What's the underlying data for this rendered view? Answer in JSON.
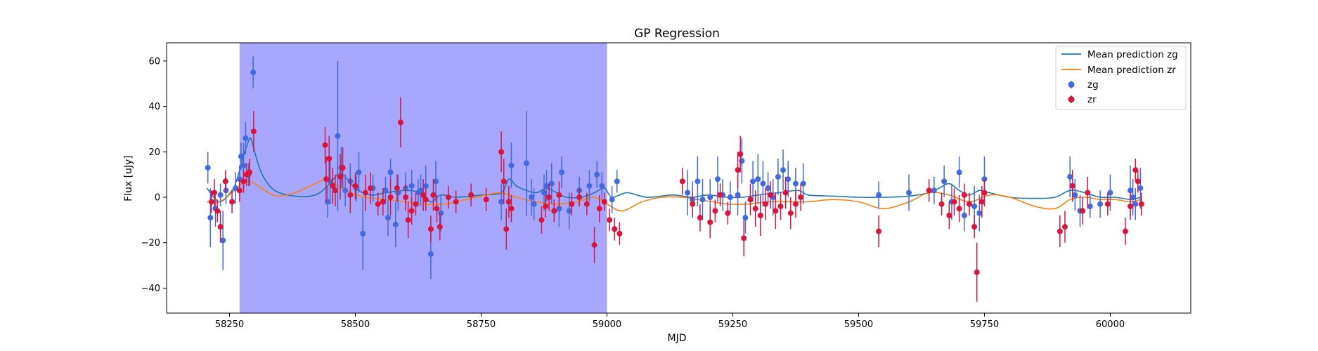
{
  "chart_data": {
    "type": "scatter",
    "title": "GP Regression",
    "xlabel": "MJD",
    "ylabel": "Flux [uJy]",
    "xlim": [
      58125,
      60160
    ],
    "ylim": [
      -51,
      68
    ],
    "xticks": [
      58250,
      58500,
      58750,
      59000,
      59250,
      59500,
      59750,
      60000
    ],
    "yticks": [
      -40,
      -20,
      0,
      20,
      40,
      60
    ],
    "grid": false,
    "legend_position": "top-right",
    "shaded_region": {
      "x0": 58270,
      "x1": 59000,
      "color": "#a7a7ff"
    },
    "colors": {
      "zg_line": "#1f77b4",
      "zr_line": "#ff7f0e",
      "zg_points": "#4169e1",
      "zr_points": "#dc143c"
    },
    "lines": [
      {
        "name": "Mean prediction zg",
        "color": "#1f77b4",
        "x": [
          58205,
          58230,
          58255,
          58265,
          58275,
          58285,
          58292,
          58300,
          58315,
          58340,
          58380,
          58420,
          58445,
          58465,
          58480,
          58500,
          58530,
          58560,
          58600,
          58630,
          58650,
          58670,
          58700,
          58750,
          58790,
          58805,
          58820,
          58840,
          58860,
          58880,
          58900,
          58920,
          58950,
          58975,
          58995,
          59010,
          59040,
          59080,
          59130,
          59170,
          59200,
          59240,
          59270,
          59300,
          59340,
          59380,
          59400,
          59450,
          59500,
          59550,
          59600,
          59640,
          59660,
          59680,
          59700,
          59720,
          59740,
          59760,
          59800,
          59850,
          59890,
          59920,
          59950,
          59980,
          60010,
          60040,
          60060
        ],
        "y": [
          4,
          -2,
          3,
          8,
          16,
          23,
          26,
          20,
          10,
          3,
          0.5,
          1,
          5,
          10,
          9,
          4,
          1,
          2,
          3,
          2,
          -2,
          1,
          0,
          1,
          2,
          8,
          5,
          3,
          2,
          4,
          2,
          0,
          0,
          2,
          4,
          0,
          2,
          0,
          1,
          0,
          1,
          0,
          0,
          1,
          2,
          3,
          1,
          0.5,
          0,
          0,
          0.5,
          2,
          4,
          6,
          3,
          1,
          3,
          2,
          0,
          -0.5,
          0,
          3,
          2,
          0,
          0,
          -1,
          0
        ]
      },
      {
        "name": "Mean prediction zr",
        "color": "#ff7f0e",
        "x": [
          58205,
          58230,
          58260,
          58280,
          58300,
          58320,
          58345,
          58380,
          58420,
          58445,
          58465,
          58490,
          58520,
          58560,
          58600,
          58640,
          58680,
          58720,
          58760,
          58790,
          58820,
          58860,
          58900,
          58940,
          58975,
          59000,
          59030,
          59070,
          59110,
          59150,
          59180,
          59210,
          59240,
          59280,
          59320,
          59360,
          59400,
          59450,
          59500,
          59550,
          59600,
          59640,
          59680,
          59720,
          59760,
          59800,
          59850,
          59890,
          59920,
          59950,
          59980,
          60010,
          60040,
          60060
        ],
        "y": [
          -2,
          -2,
          3,
          7,
          6,
          3,
          0.5,
          2,
          6,
          8,
          5,
          2,
          0,
          -1,
          -2,
          -3,
          -3,
          -1,
          1,
          2,
          0,
          -2,
          -3,
          -2,
          0,
          -3,
          -6,
          -2,
          0,
          0,
          -1,
          -2,
          -3,
          -3,
          -2,
          -2,
          -2,
          -1,
          -2,
          -5,
          -2,
          2,
          1,
          -2,
          1,
          0,
          -4,
          -5,
          -1,
          0,
          -1,
          -1,
          -2,
          -1
        ]
      }
    ],
    "series": [
      {
        "name": "zg",
        "color": "#4169e1",
        "points": [
          [
            58207,
            13,
            7
          ],
          [
            58212,
            -9,
            13
          ],
          [
            58222,
            -5,
            8
          ],
          [
            58232,
            1,
            5
          ],
          [
            58237,
            -19,
            13
          ],
          [
            58243,
            3,
            6
          ],
          [
            58262,
            4,
            7
          ],
          [
            58270,
            8,
            6
          ],
          [
            58273,
            18,
            6
          ],
          [
            58278,
            14,
            10
          ],
          [
            58282,
            26,
            7
          ],
          [
            58288,
            10,
            5
          ],
          [
            58297,
            55,
            7
          ],
          [
            58445,
            -2,
            7
          ],
          [
            58450,
            7,
            10
          ],
          [
            58465,
            27,
            33
          ],
          [
            58472,
            13,
            9
          ],
          [
            58480,
            3,
            7
          ],
          [
            58490,
            7,
            8
          ],
          [
            58502,
            4,
            6
          ],
          [
            58507,
            11,
            9
          ],
          [
            58515,
            -16,
            16
          ],
          [
            58535,
            4,
            6
          ],
          [
            58560,
            3,
            6
          ],
          [
            58565,
            -9,
            8
          ],
          [
            58570,
            11,
            6
          ],
          [
            58580,
            -12,
            10
          ],
          [
            58585,
            2,
            8
          ],
          [
            58600,
            4,
            7
          ],
          [
            58612,
            5,
            7
          ],
          [
            58625,
            2,
            6
          ],
          [
            58630,
            3,
            7
          ],
          [
            58640,
            5,
            9
          ],
          [
            58650,
            -25,
            11
          ],
          [
            58660,
            7,
            9
          ],
          [
            58670,
            -7,
            8
          ],
          [
            58790,
            -2,
            8
          ],
          [
            58810,
            14,
            10
          ],
          [
            58840,
            15,
            23
          ],
          [
            58850,
            0,
            8
          ],
          [
            58855,
            -3,
            7
          ],
          [
            58875,
            2,
            8
          ],
          [
            58880,
            5,
            7
          ],
          [
            58890,
            6,
            9
          ],
          [
            58905,
            -5,
            8
          ],
          [
            58910,
            11,
            7
          ],
          [
            58925,
            -6,
            8
          ],
          [
            58945,
            3,
            6
          ],
          [
            58965,
            5,
            7
          ],
          [
            58980,
            10,
            6
          ],
          [
            58990,
            5,
            6
          ],
          [
            59010,
            -1,
            6
          ],
          [
            59020,
            7,
            5
          ],
          [
            59160,
            2,
            10
          ],
          [
            59170,
            -1,
            8
          ],
          [
            59180,
            7,
            11
          ],
          [
            59190,
            -1,
            9
          ],
          [
            59205,
            0,
            8
          ],
          [
            59220,
            8,
            10
          ],
          [
            59230,
            1,
            7
          ],
          [
            59245,
            0,
            7
          ],
          [
            59260,
            1,
            9
          ],
          [
            59268,
            16,
            10
          ],
          [
            59275,
            -9,
            7
          ],
          [
            59290,
            7,
            9
          ],
          [
            59300,
            8,
            11
          ],
          [
            59310,
            6,
            10
          ],
          [
            59320,
            4,
            7
          ],
          [
            59330,
            0,
            8
          ],
          [
            59340,
            9,
            8
          ],
          [
            59350,
            12,
            9
          ],
          [
            59360,
            8,
            8
          ],
          [
            59375,
            6,
            7
          ],
          [
            59390,
            6,
            9
          ],
          [
            59540,
            1,
            6
          ],
          [
            59600,
            2,
            8
          ],
          [
            59650,
            3,
            6
          ],
          [
            59670,
            7,
            7
          ],
          [
            59685,
            -2,
            8
          ],
          [
            59700,
            11,
            7
          ],
          [
            59710,
            -8,
            7
          ],
          [
            59730,
            -4,
            9
          ],
          [
            59740,
            -7,
            8
          ],
          [
            59750,
            8,
            10
          ],
          [
            59920,
            9,
            9
          ],
          [
            59930,
            1,
            7
          ],
          [
            59940,
            -6,
            7
          ],
          [
            59960,
            -4,
            5
          ],
          [
            59980,
            -3,
            6
          ],
          [
            60000,
            2,
            8
          ],
          [
            60040,
            3,
            11
          ],
          [
            60045,
            0,
            8
          ],
          [
            60050,
            -3,
            7
          ],
          [
            60060,
            4,
            9
          ]
        ]
      },
      {
        "name": "zr",
        "color": "#dc143c",
        "points": [
          [
            58214,
            -2,
            5
          ],
          [
            58220,
            2,
            6
          ],
          [
            58226,
            -6,
            5
          ],
          [
            58232,
            -13,
            7
          ],
          [
            58242,
            7,
            5
          ],
          [
            58255,
            -2,
            5
          ],
          [
            58270,
            3,
            5
          ],
          [
            58278,
            7,
            5
          ],
          [
            58284,
            10,
            5
          ],
          [
            58290,
            11,
            6
          ],
          [
            58298,
            29,
            9
          ],
          [
            58440,
            23,
            8
          ],
          [
            58442,
            8,
            10
          ],
          [
            58448,
            17,
            10
          ],
          [
            58455,
            5,
            8
          ],
          [
            58460,
            3,
            7
          ],
          [
            58470,
            9,
            10
          ],
          [
            58475,
            13,
            9
          ],
          [
            58490,
            1,
            8
          ],
          [
            58500,
            5,
            6
          ],
          [
            58520,
            2,
            8
          ],
          [
            58530,
            4,
            7
          ],
          [
            58545,
            -3,
            5
          ],
          [
            58555,
            -2,
            6
          ],
          [
            58570,
            0,
            8
          ],
          [
            58583,
            4,
            6
          ],
          [
            58590,
            33,
            11
          ],
          [
            58600,
            0,
            6
          ],
          [
            58605,
            -10,
            8
          ],
          [
            58612,
            -6,
            6
          ],
          [
            58620,
            -3,
            5
          ],
          [
            58635,
            1,
            7
          ],
          [
            58640,
            -1,
            5
          ],
          [
            58650,
            -14,
            6
          ],
          [
            58655,
            1,
            7
          ],
          [
            58662,
            -5,
            6
          ],
          [
            58668,
            -13,
            6
          ],
          [
            58685,
            0,
            5
          ],
          [
            58700,
            -2,
            5
          ],
          [
            58730,
            1,
            5
          ],
          [
            58760,
            -1,
            5
          ],
          [
            58790,
            20,
            9
          ],
          [
            58795,
            7,
            10
          ],
          [
            58800,
            -14,
            9
          ],
          [
            58805,
            -2,
            7
          ],
          [
            58810,
            -5,
            6
          ],
          [
            58870,
            -10,
            6
          ],
          [
            58878,
            -4,
            5
          ],
          [
            58885,
            0,
            6
          ],
          [
            58895,
            -6,
            5
          ],
          [
            58905,
            1,
            6
          ],
          [
            58930,
            -3,
            5
          ],
          [
            58945,
            0,
            4
          ],
          [
            58960,
            -3,
            5
          ],
          [
            58975,
            -21,
            8
          ],
          [
            58985,
            -5,
            6
          ],
          [
            58995,
            -2,
            4
          ],
          [
            59005,
            -10,
            5
          ],
          [
            59015,
            -14,
            5
          ],
          [
            59025,
            -16,
            5
          ],
          [
            59150,
            7,
            6
          ],
          [
            59170,
            -3,
            5
          ],
          [
            59185,
            -9,
            6
          ],
          [
            59205,
            -11,
            7
          ],
          [
            59215,
            -6,
            5
          ],
          [
            59225,
            1,
            5
          ],
          [
            59240,
            -7,
            5
          ],
          [
            59260,
            12,
            8
          ],
          [
            59265,
            19,
            8
          ],
          [
            59272,
            -18,
            8
          ],
          [
            59285,
            -1,
            7
          ],
          [
            59295,
            -5,
            8
          ],
          [
            59305,
            -8,
            9
          ],
          [
            59315,
            -3,
            7
          ],
          [
            59325,
            1,
            6
          ],
          [
            59335,
            -6,
            8
          ],
          [
            59345,
            -4,
            6
          ],
          [
            59355,
            2,
            7
          ],
          [
            59365,
            -7,
            7
          ],
          [
            59375,
            -3,
            6
          ],
          [
            59385,
            0,
            6
          ],
          [
            59540,
            -15,
            7
          ],
          [
            59640,
            3,
            5
          ],
          [
            59665,
            -3,
            5
          ],
          [
            59680,
            -8,
            6
          ],
          [
            59690,
            -2,
            6
          ],
          [
            59700,
            -5,
            6
          ],
          [
            59710,
            1,
            5
          ],
          [
            59720,
            -3,
            5
          ],
          [
            59730,
            -13,
            5
          ],
          [
            59735,
            -33,
            13
          ],
          [
            59745,
            -2,
            7
          ],
          [
            59750,
            2,
            6
          ],
          [
            59900,
            -15,
            7
          ],
          [
            59910,
            -13,
            7
          ],
          [
            59925,
            5,
            7
          ],
          [
            59945,
            -6,
            6
          ],
          [
            59955,
            2,
            7
          ],
          [
            59995,
            -3,
            5
          ],
          [
            60030,
            -15,
            6
          ],
          [
            60040,
            -4,
            6
          ],
          [
            60050,
            12,
            5
          ],
          [
            60055,
            7,
            5
          ],
          [
            60062,
            -3,
            5
          ]
        ]
      }
    ],
    "legend": [
      "Mean prediction zg",
      "Mean prediction zr",
      "zg",
      "zr"
    ]
  }
}
